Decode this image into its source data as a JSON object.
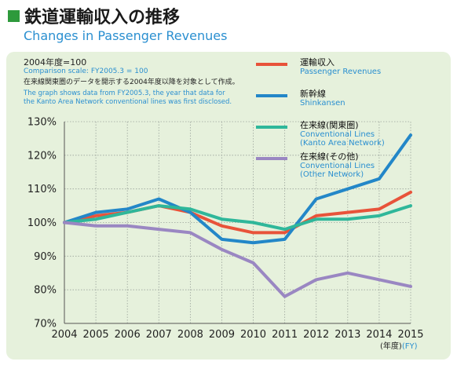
{
  "header": {
    "title_ja": "鉄道運輸収入の推移",
    "title_en": "Changes in Passenger Revenues",
    "accent_color": "#2e9a3c"
  },
  "notes": {
    "base_ja": "2004年度=100",
    "base_en": "Comparison scale: FY2005.3 = 100",
    "desc_ja": "在来線関東圏のデータを開示する2004年度以降を対象として作成。",
    "desc_en_1": "The graph shows data from FY2005.3, the year that data for",
    "desc_en_2": "the Kanto Area Network conventional lines was first disclosed."
  },
  "legend": {
    "items": [
      {
        "ja": "運輸収入",
        "en_lines": [
          "Passenger Revenues"
        ],
        "color": "#e8533a"
      },
      {
        "ja": "新幹線",
        "en_lines": [
          "Shinkansen"
        ],
        "color": "#2387c8"
      },
      {
        "ja": "在来線(関東圏)",
        "en_lines": [
          "Conventional Lines",
          "(Kanto Area Network)"
        ],
        "color": "#2fb79a"
      },
      {
        "ja": "在来線(その他)",
        "en_lines": [
          "Conventional Lines",
          "(Other Network)"
        ],
        "color": "#9a87c2"
      }
    ]
  },
  "axis": {
    "fy_unit_ja": "(年度)",
    "fy_unit_en": "(FY)"
  },
  "chart_data": {
    "type": "line",
    "x": [
      "2004",
      "2005",
      "2006",
      "2007",
      "2008",
      "2009",
      "2010",
      "2011",
      "2012",
      "2013",
      "2014",
      "2015"
    ],
    "ylim": [
      70,
      130
    ],
    "yticks": [
      70,
      80,
      90,
      100,
      110,
      120,
      130
    ],
    "ytick_labels": [
      "70%",
      "80%",
      "90%",
      "100%",
      "110%",
      "120%",
      "130%"
    ],
    "grid": true,
    "legend_position": "top-right",
    "series": [
      {
        "name": "運輸収入 Passenger Revenues",
        "color": "#e8533a",
        "values": [
          100,
          102,
          103,
          105,
          103,
          99,
          97,
          97,
          102,
          103,
          104,
          109
        ]
      },
      {
        "name": "新幹線 Shinkansen",
        "color": "#2387c8",
        "values": [
          100,
          103,
          104,
          107,
          103,
          95,
          94,
          95,
          107,
          110,
          113,
          126
        ]
      },
      {
        "name": "在来線(関東圏) Conventional Lines (Kanto Area Network)",
        "color": "#2fb79a",
        "values": [
          100,
          101,
          103,
          105,
          104,
          101,
          100,
          98,
          101,
          101,
          102,
          105
        ]
      },
      {
        "name": "在来線(その他) Conventional Lines (Other Network)",
        "color": "#9a87c2",
        "values": [
          100,
          99,
          99,
          98,
          97,
          92,
          88,
          78,
          83,
          85,
          83,
          81
        ]
      }
    ]
  }
}
